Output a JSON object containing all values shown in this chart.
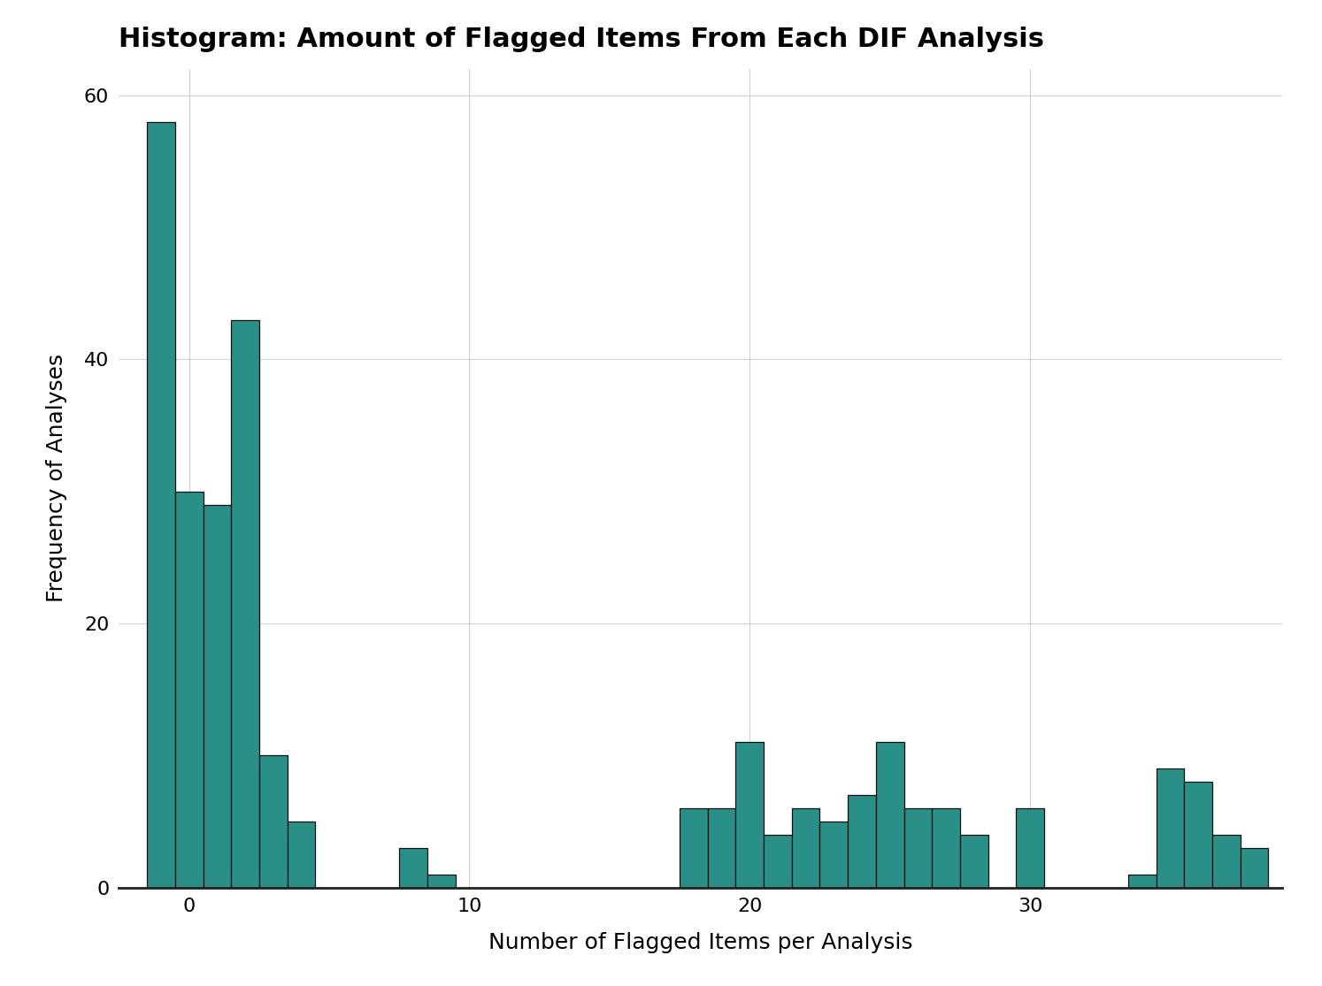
{
  "title": "Histogram: Amount of Flagged Items From Each DIF Analysis",
  "xlabel": "Number of Flagged Items per Analysis",
  "ylabel": "Frequency of Analyses",
  "bar_color": "#2a9087",
  "edge_color": "#111111",
  "background_color": "#ffffff",
  "grid_color": "#d0d0d0",
  "xlim": [
    -2.5,
    39
  ],
  "ylim": [
    0,
    62
  ],
  "yticks": [
    0,
    20,
    40,
    60
  ],
  "xticks": [
    0,
    10,
    20,
    30
  ],
  "title_fontsize": 22,
  "axis_label_fontsize": 18,
  "tick_fontsize": 16,
  "bar_centers": [
    -1,
    0,
    1,
    2,
    3,
    4,
    8,
    9,
    18,
    19,
    20,
    21,
    22,
    23,
    24,
    25,
    26,
    27,
    28,
    30,
    34,
    35,
    36,
    37,
    38
  ],
  "heights": [
    58,
    30,
    29,
    43,
    10,
    5,
    3,
    1,
    6,
    6,
    11,
    4,
    6,
    5,
    7,
    11,
    6,
    6,
    4,
    6,
    1,
    9,
    8,
    4,
    3
  ]
}
